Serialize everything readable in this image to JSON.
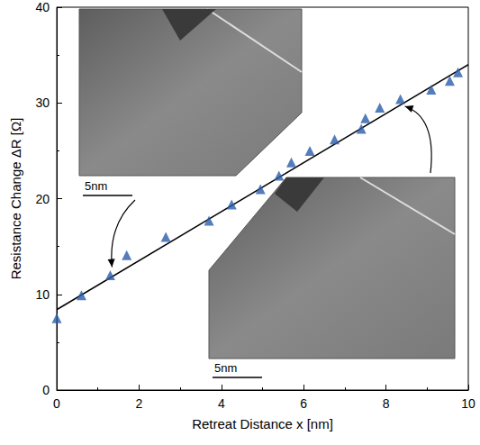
{
  "chart_data": {
    "type": "scatter",
    "x_label": "Retreat Distance x [nm]",
    "y_label": "Resistance Change ΔR [Ω]",
    "xlim": [
      0,
      10
    ],
    "xticks": [
      0,
      2,
      4,
      6,
      8,
      10
    ],
    "ylim": [
      0,
      40
    ],
    "yticks": [
      0,
      10,
      20,
      30,
      40
    ],
    "grid": false,
    "series": [
      {
        "type": "scatter",
        "color": "#2a5caa",
        "marker": "triangle",
        "x": [
          0,
          0.6,
          1.3,
          1.7,
          2.65,
          3.7,
          4.25,
          4.95,
          5.4,
          5.7,
          6.15,
          6.75,
          7.4,
          7.5,
          7.85,
          8.35,
          9.1,
          9.55,
          9.75
        ],
        "values": [
          7.5,
          9.9,
          12.0,
          14.1,
          16.0,
          17.7,
          19.4,
          21.0,
          22.4,
          23.8,
          25.0,
          26.2,
          27.3,
          28.4,
          29.5,
          30.4,
          31.4,
          32.3,
          33.2
        ]
      },
      {
        "type": "line",
        "color": "#000000",
        "line_style": "solid",
        "x": [
          0,
          10
        ],
        "values": [
          8.4,
          34.0
        ]
      }
    ],
    "insets": [
      {
        "scale_bar": "5nm"
      },
      {
        "scale_bar": "5nm"
      }
    ]
  }
}
